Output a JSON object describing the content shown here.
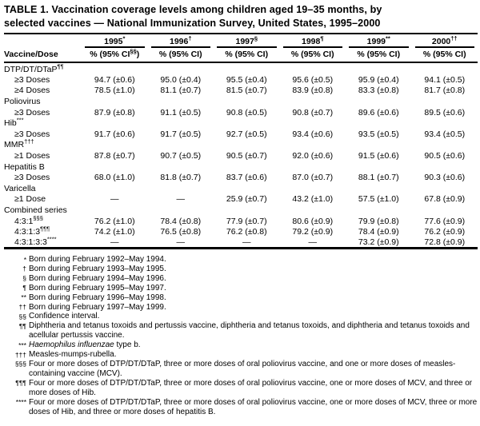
{
  "title_lines": [
    "TABLE 1. Vaccination coverage levels among children aged 19–35 months, by",
    "selected vaccines — National Immunization Survey, United States, 1995–2000"
  ],
  "table": {
    "row_header": "Vaccine/Dose",
    "na_symbol": "—",
    "columns": [
      {
        "year": "1995",
        "sup": "*",
        "sub_pre": "% (95% CI",
        "sub_sup": "§§",
        "sub_post": ")"
      },
      {
        "year": "1996",
        "sup": "†",
        "sub_pre": "% (95% CI)",
        "sub_sup": "",
        "sub_post": ""
      },
      {
        "year": "1997",
        "sup": "§",
        "sub_pre": "% (95% CI)",
        "sub_sup": "",
        "sub_post": ""
      },
      {
        "year": "1998",
        "sup": "¶",
        "sub_pre": "% (95% CI)",
        "sub_sup": "",
        "sub_post": ""
      },
      {
        "year": "1999",
        "sup": "**",
        "sub_pre": "% (95% CI)",
        "sub_sup": "",
        "sub_post": ""
      },
      {
        "year": "2000",
        "sup": "††",
        "sub_pre": "% (95% CI)",
        "sub_sup": "",
        "sub_post": ""
      }
    ],
    "rows": [
      {
        "type": "group",
        "label": "DTP/DT/DTaP",
        "sup": "¶¶"
      },
      {
        "type": "data",
        "label": "≥3 Doses",
        "sup": "",
        "values": [
          {
            "pct": "94.7",
            "ci": "±0.6"
          },
          {
            "pct": "95.0",
            "ci": "±0.4"
          },
          {
            "pct": "95.5",
            "ci": "±0.4"
          },
          {
            "pct": "95.6",
            "ci": "±0.5"
          },
          {
            "pct": "95.9",
            "ci": "±0.4"
          },
          {
            "pct": "94.1",
            "ci": "±0.5"
          }
        ]
      },
      {
        "type": "data",
        "label": "≥4 Doses",
        "sup": "",
        "values": [
          {
            "pct": "78.5",
            "ci": "±1.0"
          },
          {
            "pct": "81.1",
            "ci": "±0.7"
          },
          {
            "pct": "81.5",
            "ci": "±0.7"
          },
          {
            "pct": "83.9",
            "ci": "±0.8"
          },
          {
            "pct": "83.3",
            "ci": "±0.8"
          },
          {
            "pct": "81.7",
            "ci": "±0.8"
          }
        ]
      },
      {
        "type": "group",
        "label": "Poliovirus",
        "sup": ""
      },
      {
        "type": "data",
        "label": "≥3 Doses",
        "sup": "",
        "values": [
          {
            "pct": "87.9",
            "ci": "±0.8"
          },
          {
            "pct": "91.1",
            "ci": "±0.5"
          },
          {
            "pct": "90.8",
            "ci": "±0.5"
          },
          {
            "pct": "90.8",
            "ci": "±0.7"
          },
          {
            "pct": "89.6",
            "ci": "±0.6"
          },
          {
            "pct": "89.5",
            "ci": "±0.6"
          }
        ]
      },
      {
        "type": "group",
        "label": "Hib",
        "sup": "***"
      },
      {
        "type": "data",
        "label": "≥3 Doses",
        "sup": "",
        "values": [
          {
            "pct": "91.7",
            "ci": "±0.6"
          },
          {
            "pct": "91.7",
            "ci": "±0.5"
          },
          {
            "pct": "92.7",
            "ci": "±0.5"
          },
          {
            "pct": "93.4",
            "ci": "±0.6"
          },
          {
            "pct": "93.5",
            "ci": "±0.5"
          },
          {
            "pct": "93.4",
            "ci": "±0.5"
          }
        ]
      },
      {
        "type": "group",
        "label": "MMR",
        "sup": "†††"
      },
      {
        "type": "data",
        "label": "≥1 Doses",
        "sup": "",
        "values": [
          {
            "pct": "87.8",
            "ci": "±0.7"
          },
          {
            "pct": "90.7",
            "ci": "±0.5"
          },
          {
            "pct": "90.5",
            "ci": "±0.7"
          },
          {
            "pct": "92.0",
            "ci": "±0.6"
          },
          {
            "pct": "91.5",
            "ci": "±0.6"
          },
          {
            "pct": "90.5",
            "ci": "±0.6"
          }
        ]
      },
      {
        "type": "group",
        "label": "Hepatitis B",
        "sup": ""
      },
      {
        "type": "data",
        "label": "≥3 Doses",
        "sup": "",
        "values": [
          {
            "pct": "68.0",
            "ci": "±1.0"
          },
          {
            "pct": "81.8",
            "ci": "±0.7"
          },
          {
            "pct": "83.7",
            "ci": "±0.6"
          },
          {
            "pct": "87.0",
            "ci": "±0.7"
          },
          {
            "pct": "88.1",
            "ci": "±0.7"
          },
          {
            "pct": "90.3",
            "ci": "±0.6"
          }
        ]
      },
      {
        "type": "group",
        "label": "Varicella",
        "sup": ""
      },
      {
        "type": "data",
        "label": "≥1 Dose",
        "sup": "",
        "values": [
          null,
          null,
          {
            "pct": "25.9",
            "ci": "±0.7"
          },
          {
            "pct": "43.2",
            "ci": "±1.0"
          },
          {
            "pct": "57.5",
            "ci": "±1.0"
          },
          {
            "pct": "67.8",
            "ci": "±0.9"
          }
        ]
      },
      {
        "type": "group",
        "label": "Combined series",
        "sup": ""
      },
      {
        "type": "data",
        "label": "4:3:1",
        "sup": "§§§",
        "values": [
          {
            "pct": "76.2",
            "ci": "±1.0"
          },
          {
            "pct": "78.4",
            "ci": "±0.8"
          },
          {
            "pct": "77.9",
            "ci": "±0.7"
          },
          {
            "pct": "80.6",
            "ci": "±0.9"
          },
          {
            "pct": "79.9",
            "ci": "±0.8"
          },
          {
            "pct": "77.6",
            "ci": "±0.9"
          }
        ]
      },
      {
        "type": "data",
        "label": "4:3:1:3",
        "sup": "¶¶¶",
        "values": [
          {
            "pct": "74.2",
            "ci": "±1.0"
          },
          {
            "pct": "76.5",
            "ci": "±0.8"
          },
          {
            "pct": "76.2",
            "ci": "±0.8"
          },
          {
            "pct": "79.2",
            "ci": "±0.9"
          },
          {
            "pct": "78.4",
            "ci": "±0.9"
          },
          {
            "pct": "76.2",
            "ci": "±0.9"
          }
        ]
      },
      {
        "type": "data",
        "label": "4:3:1:3:3",
        "sup": "****",
        "values": [
          null,
          null,
          null,
          null,
          {
            "pct": "73.2",
            "ci": "±0.9"
          },
          {
            "pct": "72.8",
            "ci": "±0.9"
          }
        ]
      }
    ]
  },
  "footnotes": [
    {
      "marker": "*",
      "parts": [
        {
          "text": "Born during February 1992–May 1994.",
          "italic": false
        }
      ]
    },
    {
      "marker": "†",
      "parts": [
        {
          "text": "Born during February 1993–May 1995.",
          "italic": false
        }
      ]
    },
    {
      "marker": "§",
      "parts": [
        {
          "text": "Born during February 1994–May 1996.",
          "italic": false
        }
      ]
    },
    {
      "marker": "¶",
      "parts": [
        {
          "text": "Born during February 1995–May 1997.",
          "italic": false
        }
      ]
    },
    {
      "marker": "**",
      "parts": [
        {
          "text": "Born during February 1996–May 1998.",
          "italic": false
        }
      ]
    },
    {
      "marker": "††",
      "parts": [
        {
          "text": "Born during February 1997–May 1999.",
          "italic": false
        }
      ]
    },
    {
      "marker": "§§",
      "parts": [
        {
          "text": "Confidence interval.",
          "italic": false
        }
      ]
    },
    {
      "marker": "¶¶",
      "parts": [
        {
          "text": "Diphtheria and tetanus toxoids and pertussis vaccine, diphtheria and tetanus toxoids, and diphtheria and tetanus toxoids and acellular pertussis vaccine.",
          "italic": false
        }
      ]
    },
    {
      "marker": "***",
      "parts": [
        {
          "text": "Haemophilus influenzae",
          "italic": true
        },
        {
          "text": " type b.",
          "italic": false
        }
      ]
    },
    {
      "marker": "†††",
      "parts": [
        {
          "text": "Measles-mumps-rubella.",
          "italic": false
        }
      ]
    },
    {
      "marker": "§§§",
      "parts": [
        {
          "text": "Four or more doses of DTP/DT/DTaP, three or more doses of oral poliovirus vaccine, and one or more doses of measles-containing vaccine (MCV).",
          "italic": false
        }
      ]
    },
    {
      "marker": "¶¶¶",
      "parts": [
        {
          "text": "Four or more doses of DTP/DT/DTaP, three or more doses of oral poliovirus vaccine, one or more doses of MCV, and three or more doses of Hib.",
          "italic": false
        }
      ]
    },
    {
      "marker": "****",
      "parts": [
        {
          "text": "Four or more doses of DTP/DT/DTaP, three or more doses of oral poliovirus vaccine, one or more doses of MCV, three or more doses of Hib, and three or more doses of hepatitis B.",
          "italic": false
        }
      ]
    }
  ],
  "colors": {
    "text": "#000000",
    "background": "#ffffff"
  }
}
